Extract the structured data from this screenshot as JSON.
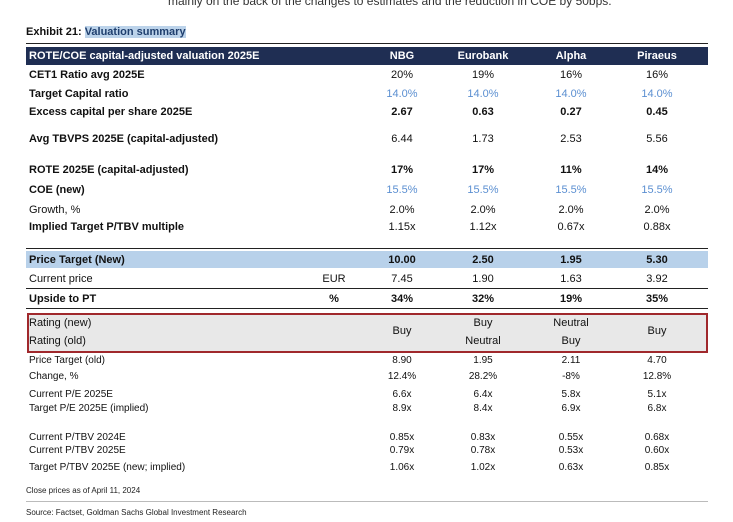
{
  "top_text": "mainly on the back of the changes to estimates and the reduction in COE by 50bps.",
  "exhibit": {
    "prefix": "Exhibit 21: ",
    "title": "Valuation summary"
  },
  "header": {
    "label": "ROTE/COE capital-adjusted valuation 2025E",
    "banks": [
      "NBG",
      "Eurobank",
      "Alpha",
      "Piraeus"
    ]
  },
  "rows": {
    "cet1": {
      "label": "CET1 Ratio avg 2025E",
      "values": [
        "20%",
        "19%",
        "16%",
        "16%"
      ]
    },
    "target_cap": {
      "label": "Target Capital ratio",
      "values": [
        "14.0%",
        "14.0%",
        "14.0%",
        "14.0%"
      ]
    },
    "excess": {
      "label": "Excess capital per share 2025E",
      "values": [
        "2.67",
        "0.63",
        "0.27",
        "0.45"
      ]
    },
    "tbvps": {
      "label": "Avg TBVPS 2025E (capital-adjusted)",
      "values": [
        "6.44",
        "1.73",
        "2.53",
        "5.56"
      ]
    },
    "rote": {
      "label": "ROTE 2025E (capital-adjusted)",
      "values": [
        "17%",
        "17%",
        "11%",
        "14%"
      ]
    },
    "coe": {
      "label": "COE (new)",
      "values": [
        "15.5%",
        "15.5%",
        "15.5%",
        "15.5%"
      ]
    },
    "growth": {
      "label": "Growth, %",
      "values": [
        "2.0%",
        "2.0%",
        "2.0%",
        "2.0%"
      ]
    },
    "implied_ptbv": {
      "label": "Implied Target P/TBV multiple",
      "values": [
        "1.15x",
        "1.12x",
        "0.67x",
        "0.88x"
      ]
    },
    "pt_new": {
      "label": "Price Target (New)",
      "values": [
        "10.00",
        "2.50",
        "1.95",
        "5.30"
      ]
    },
    "current_price": {
      "label": "Current price",
      "unit": "EUR",
      "values": [
        "7.45",
        "1.90",
        "1.63",
        "3.92"
      ]
    },
    "upside": {
      "label": "Upside to PT",
      "unit": "%",
      "values": [
        "34%",
        "32%",
        "19%",
        "35%"
      ]
    },
    "rating_new": {
      "label": "Rating (new)",
      "values": [
        "",
        "Buy",
        "Neutral",
        ""
      ]
    },
    "rating_old": {
      "label": "Rating (old)",
      "values": [
        "",
        "Neutral",
        "Buy",
        ""
      ]
    },
    "rating_merged": {
      "values": [
        "Buy",
        "",
        "",
        "Buy"
      ]
    },
    "pt_old": {
      "label": "Price Target (old)",
      "values": [
        "8.90",
        "1.95",
        "2.11",
        "4.70"
      ]
    },
    "change": {
      "label": "Change, %",
      "values": [
        "12.4%",
        "28.2%",
        "-8%",
        "12.8%"
      ]
    },
    "pe_current": {
      "label": "Current P/E 2025E",
      "values": [
        "6.6x",
        "6.4x",
        "5.8x",
        "5.1x"
      ]
    },
    "pe_target": {
      "label": "Target P/E 2025E (implied)",
      "values": [
        "8.9x",
        "8.4x",
        "6.9x",
        "6.8x"
      ]
    },
    "ptbv_2024": {
      "label": "Current P/TBV 2024E",
      "values": [
        "0.85x",
        "0.83x",
        "0.55x",
        "0.68x"
      ]
    },
    "ptbv_2025": {
      "label": "Current P/TBV 2025E",
      "values": [
        "0.79x",
        "0.78x",
        "0.53x",
        "0.60x"
      ]
    },
    "ptbv_target": {
      "label": "Target P/TBV 2025E (new; implied)",
      "values": [
        "1.06x",
        "1.02x",
        "0.63x",
        "0.85x"
      ]
    }
  },
  "notes": {
    "close_prices": "Close prices as of April 11, 2024",
    "source": "Source: Factset, Goldman Sachs Global Investment Research"
  },
  "colors": {
    "header_bg": "#1f2e53",
    "pt_band": "#b8d1ea",
    "rating_border": "#a0282c",
    "blue_text": "#5b8fd1"
  }
}
